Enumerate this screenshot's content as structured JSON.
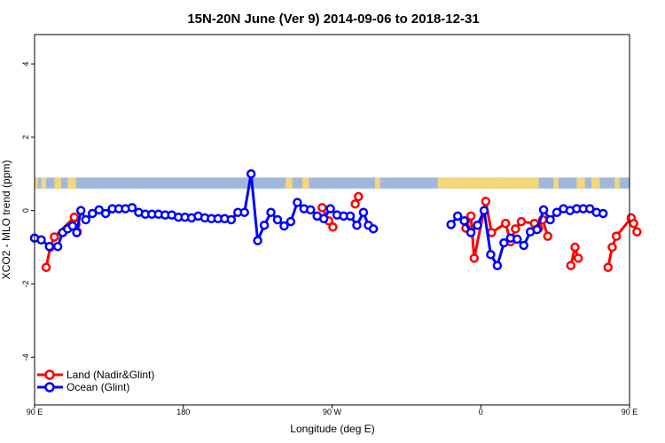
{
  "chart_data": {
    "type": "line",
    "title": "15N-20N June (Ver 9)   2014-09-06 to 2018-12-31",
    "xlabel": "Longitude (deg E)",
    "ylabel": "XCO2 - MLO trend (ppm)",
    "xlim": [
      90,
      450
    ],
    "ylim": [
      -5.3,
      4.8
    ],
    "xticks": [
      {
        "value": 90,
        "label": "90 E"
      },
      {
        "value": 180,
        "label": "180"
      },
      {
        "value": 270,
        "label": "90 W"
      },
      {
        "value": 360,
        "label": "0"
      },
      {
        "value": 450,
        "label": "90 E"
      }
    ],
    "yticks": [
      -4,
      -2,
      0,
      2,
      4
    ],
    "grid": false,
    "legend": {
      "position": "bottom-left"
    },
    "land_band": {
      "y_range": [
        0.6,
        0.9
      ],
      "ocean_color": "#a0b8dc",
      "land_color": "#f6d67a"
    },
    "series": [
      {
        "name": "Land (Nadir&Glint)",
        "color": "#ff0000",
        "points": [
          [
            97,
            -1.55
          ],
          [
            99.5,
            -1.0
          ],
          [
            102,
            -0.72
          ],
          [
            114,
            -0.18
          ],
          [
            115,
            -0.38
          ],
          [
            115.8,
            -0.58
          ],
          [
            264,
            0.08
          ],
          [
            268,
            -0.28
          ],
          [
            270.5,
            -0.45
          ],
          [
            284,
            0.18
          ],
          [
            286,
            0.38
          ],
          [
            351,
            -0.48
          ],
          [
            354,
            -0.15
          ],
          [
            356,
            -1.3
          ],
          [
            363,
            0.25
          ],
          [
            366.5,
            -0.6
          ],
          [
            375,
            -0.35
          ],
          [
            378,
            -0.85
          ],
          [
            381,
            -0.5
          ],
          [
            384.5,
            -0.3
          ],
          [
            392.5,
            -0.35
          ],
          [
            395,
            -0.48
          ],
          [
            397.5,
            -0.25
          ],
          [
            400.5,
            -0.7
          ],
          [
            414.5,
            -1.5
          ],
          [
            417,
            -1.0
          ],
          [
            419,
            -1.3
          ],
          [
            437,
            -1.55
          ],
          [
            439.5,
            -1.0
          ],
          [
            442,
            -0.7
          ],
          [
            451,
            -0.2
          ],
          [
            452.5,
            -0.35
          ],
          [
            454.5,
            -0.58
          ]
        ]
      },
      {
        "name": "Ocean (Glint)",
        "color": "#0000ff",
        "points": [
          [
            90,
            -0.75
          ],
          [
            94,
            -0.8
          ],
          [
            99,
            -0.98
          ],
          [
            104,
            -0.98
          ],
          [
            107,
            -0.6
          ],
          [
            110,
            -0.5
          ],
          [
            113,
            -0.42
          ],
          [
            115.5,
            -0.6
          ],
          [
            118,
            0.0
          ],
          [
            121,
            -0.25
          ],
          [
            125,
            -0.08
          ],
          [
            129,
            0.02
          ],
          [
            133,
            -0.08
          ],
          [
            137,
            0.05
          ],
          [
            141,
            0.05
          ],
          [
            145,
            0.05
          ],
          [
            149,
            0.08
          ],
          [
            153,
            -0.05
          ],
          [
            157,
            -0.1
          ],
          [
            161,
            -0.1
          ],
          [
            165,
            -0.1
          ],
          [
            169,
            -0.12
          ],
          [
            173,
            -0.12
          ],
          [
            177,
            -0.18
          ],
          [
            181,
            -0.18
          ],
          [
            185,
            -0.2
          ],
          [
            189,
            -0.15
          ],
          [
            193,
            -0.2
          ],
          [
            197,
            -0.22
          ],
          [
            201,
            -0.22
          ],
          [
            205,
            -0.22
          ],
          [
            209,
            -0.25
          ],
          [
            213,
            -0.05
          ],
          [
            217,
            -0.05
          ],
          [
            221,
            1.0
          ],
          [
            225,
            -0.82
          ],
          [
            229,
            -0.4
          ],
          [
            233,
            -0.05
          ],
          [
            237,
            -0.25
          ],
          [
            241,
            -0.42
          ],
          [
            245,
            -0.3
          ],
          [
            249,
            0.22
          ],
          [
            253,
            0.05
          ],
          [
            257,
            0.02
          ],
          [
            261,
            -0.15
          ],
          [
            265,
            -0.22
          ],
          [
            269,
            0.05
          ],
          [
            273,
            -0.12
          ],
          [
            277,
            -0.15
          ],
          [
            281,
            -0.15
          ],
          [
            285,
            -0.4
          ],
          [
            289,
            -0.05
          ],
          [
            292,
            -0.4
          ],
          [
            295,
            -0.5
          ],
          [
            342,
            -0.38
          ],
          [
            346,
            -0.15
          ],
          [
            350,
            -0.28
          ],
          [
            354,
            -0.6
          ],
          [
            358,
            -0.4
          ],
          [
            362,
            0.0
          ],
          [
            366,
            -1.2
          ],
          [
            370,
            -1.5
          ],
          [
            374,
            -0.88
          ],
          [
            378,
            -0.75
          ],
          [
            382,
            -0.78
          ],
          [
            386,
            -0.95
          ],
          [
            390,
            -0.58
          ],
          [
            394,
            -0.52
          ],
          [
            398,
            0.02
          ],
          [
            402,
            -0.25
          ],
          [
            406,
            -0.05
          ],
          [
            410,
            0.05
          ],
          [
            414,
            0.0
          ],
          [
            418,
            0.05
          ],
          [
            422,
            0.05
          ],
          [
            426,
            0.05
          ],
          [
            430,
            -0.05
          ],
          [
            434,
            -0.08
          ]
        ]
      }
    ]
  }
}
